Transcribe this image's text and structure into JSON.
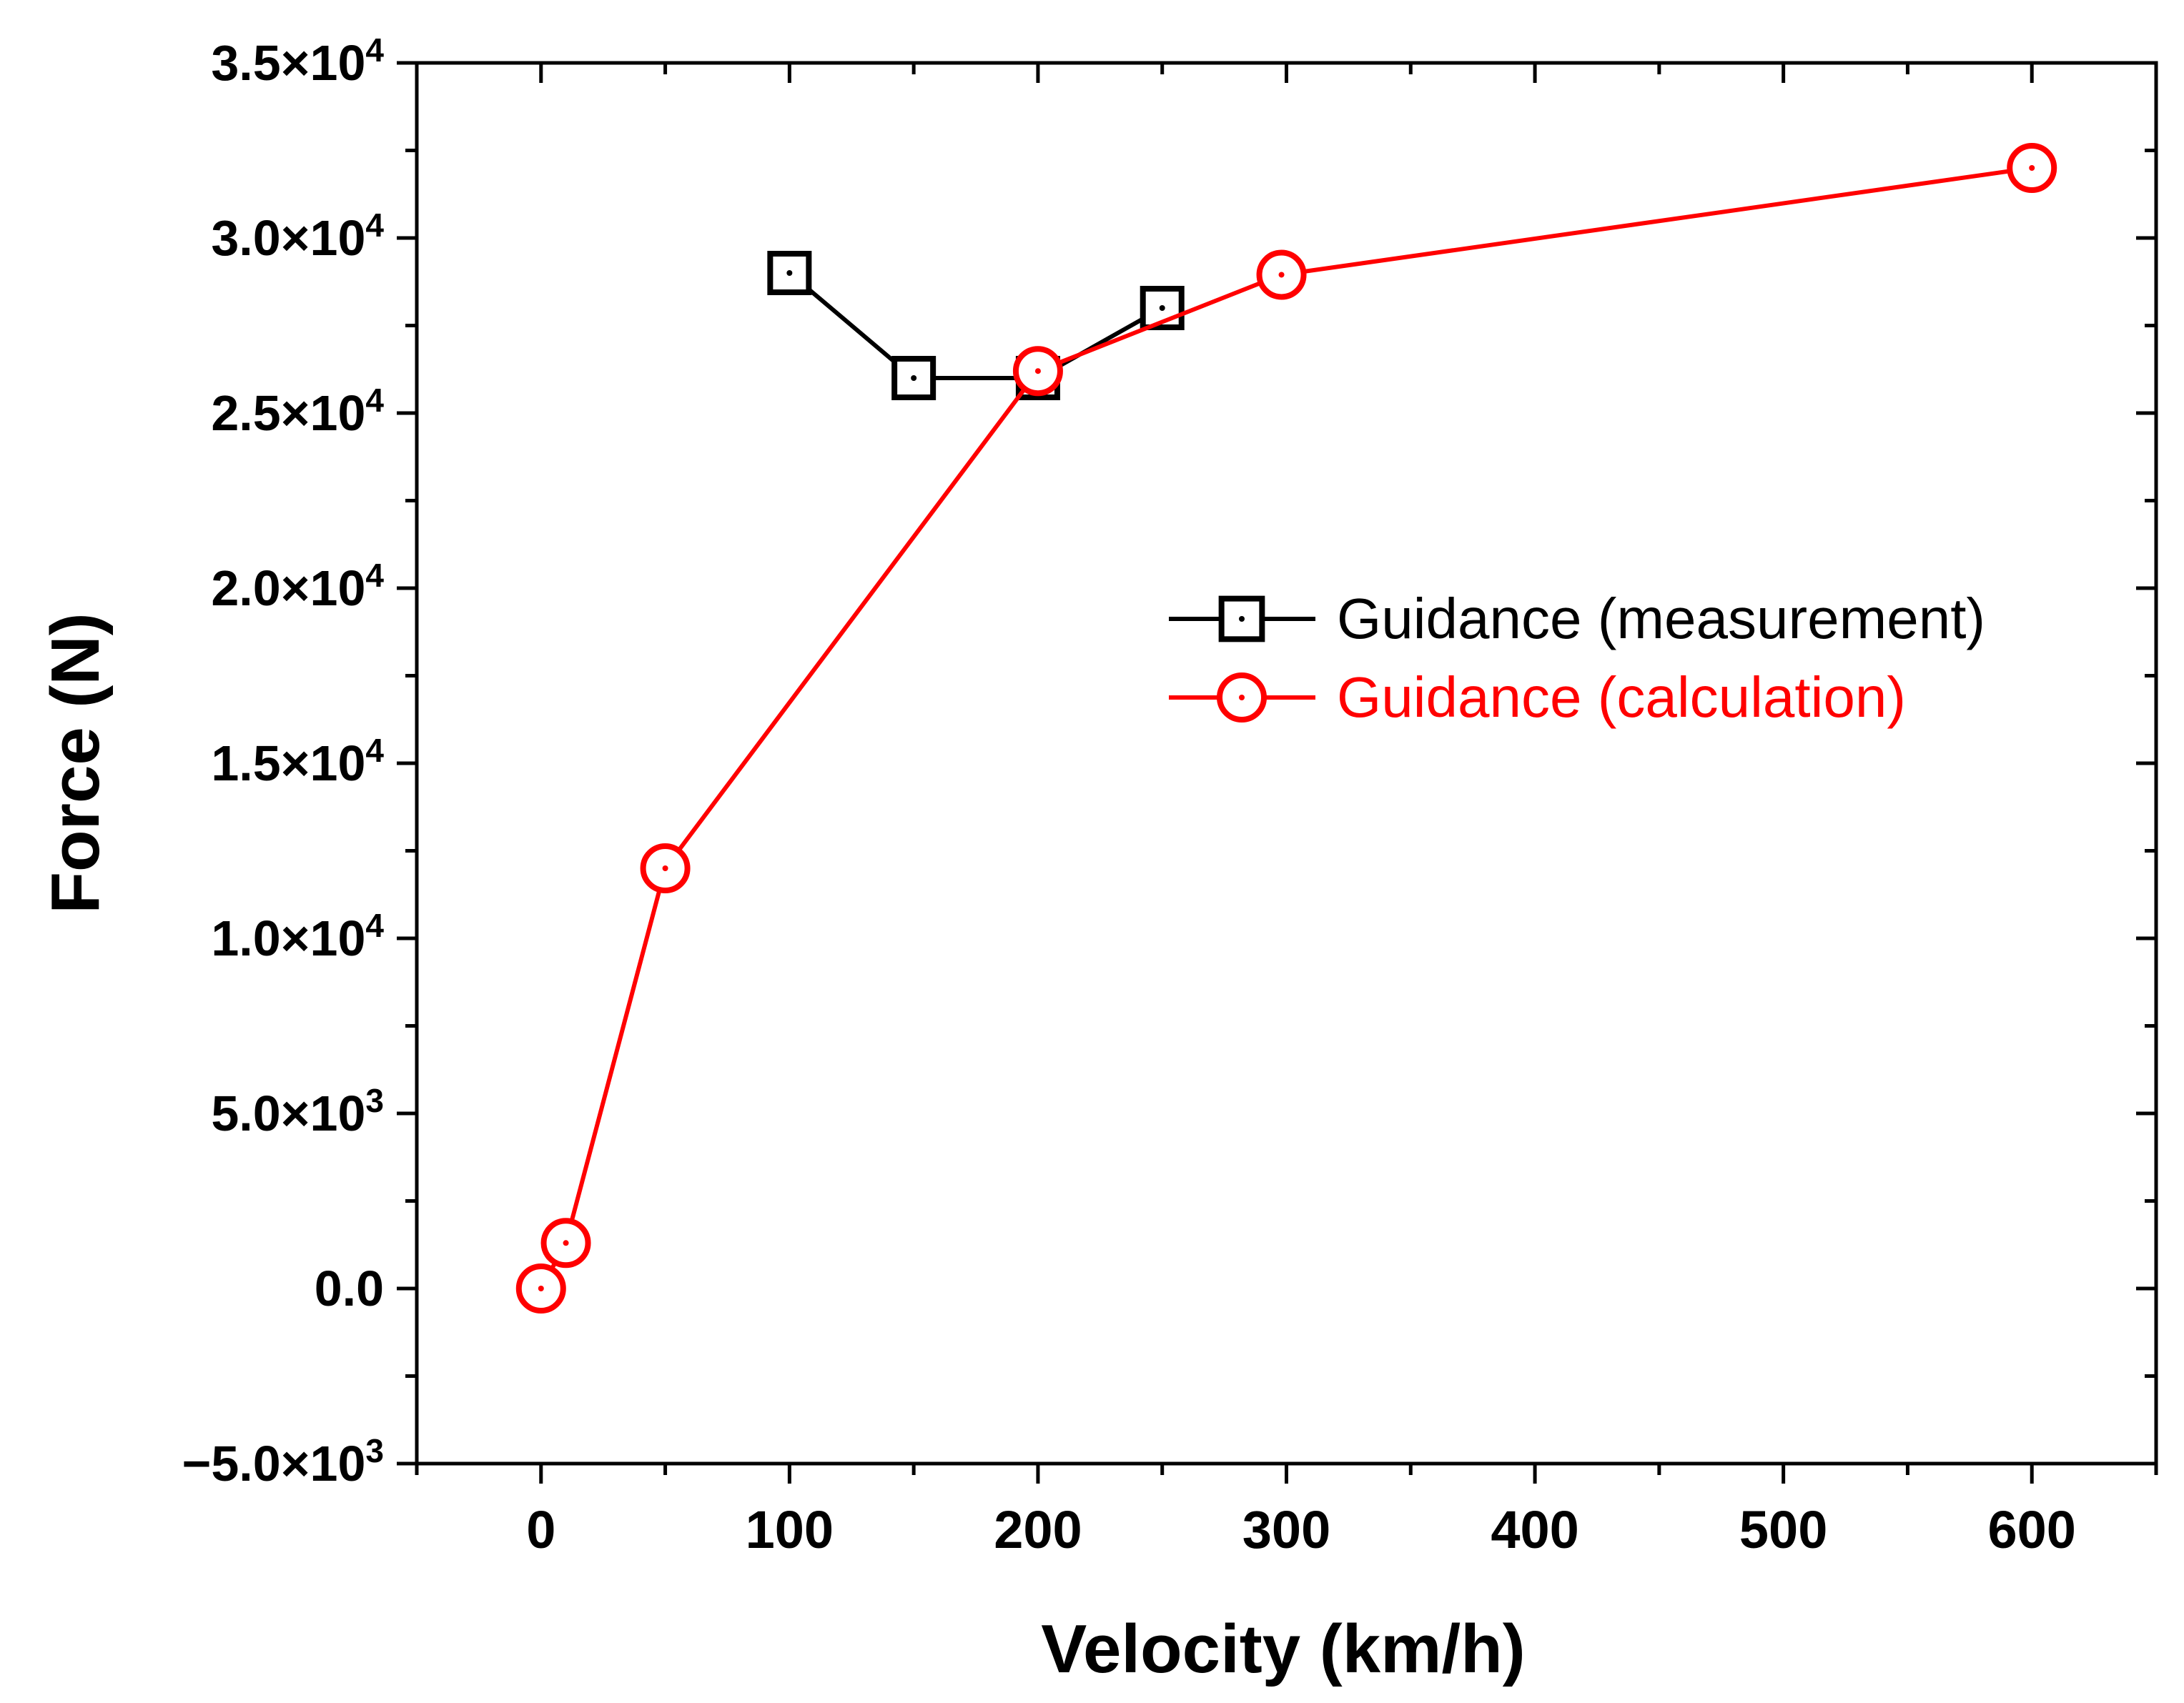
{
  "chart_data": {
    "type": "line",
    "title": "",
    "xlabel": "Velocity (km/h)",
    "ylabel": "Force (N)",
    "xlim": [
      -50,
      650
    ],
    "ylim": [
      -5000,
      35000
    ],
    "x_ticks": [
      0,
      100,
      200,
      300,
      400,
      500,
      600
    ],
    "x_tick_labels": [
      "0",
      "100",
      "200",
      "300",
      "400",
      "500",
      "600"
    ],
    "y_ticks": [
      {
        "value": -5000,
        "mantissa": "−5.0",
        "exponent": "3"
      },
      {
        "value": 0,
        "mantissa": "0.0",
        "exponent": ""
      },
      {
        "value": 5000,
        "mantissa": "5.0",
        "exponent": "3"
      },
      {
        "value": 10000,
        "mantissa": "1.0",
        "exponent": "4"
      },
      {
        "value": 15000,
        "mantissa": "1.5",
        "exponent": "4"
      },
      {
        "value": 20000,
        "mantissa": "2.0",
        "exponent": "4"
      },
      {
        "value": 25000,
        "mantissa": "2.5",
        "exponent": "4"
      },
      {
        "value": 30000,
        "mantissa": "3.0",
        "exponent": "4"
      },
      {
        "value": 35000,
        "mantissa": "3.5",
        "exponent": "4"
      }
    ],
    "grid": false,
    "legend_position": "right-middle",
    "series": [
      {
        "name": "Guidance (measurement)",
        "color": "#000000",
        "marker": "square",
        "x": [
          100,
          150,
          200,
          250
        ],
        "y": [
          29000,
          26000,
          26000,
          28000
        ]
      },
      {
        "name": "Guidance (calculation)",
        "color": "#ff0000",
        "marker": "circle",
        "x": [
          0,
          10,
          50,
          200,
          298,
          600
        ],
        "y": [
          0,
          1300,
          12000,
          26200,
          28950,
          32000
        ]
      }
    ]
  }
}
